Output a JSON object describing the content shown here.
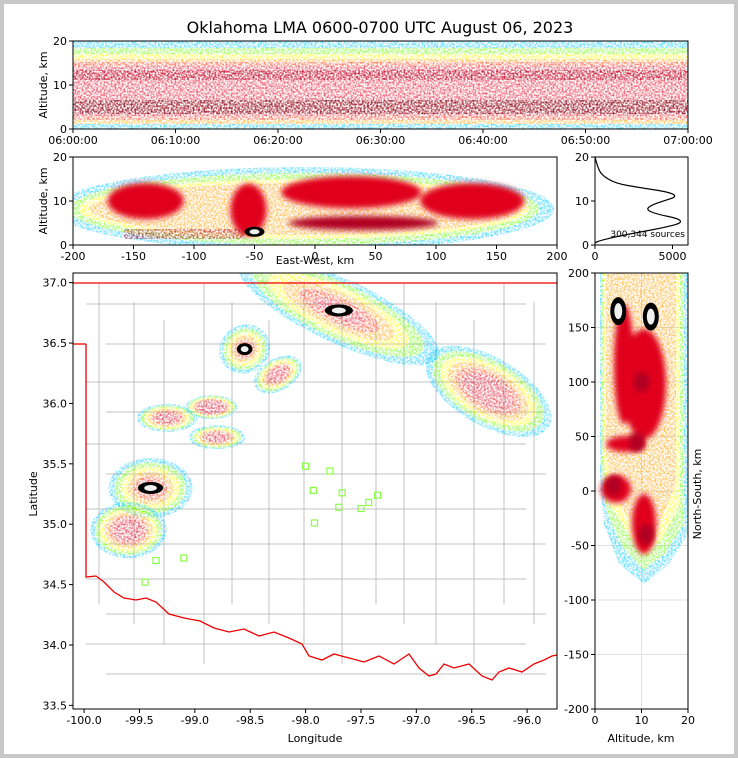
{
  "chart_data": [
    {
      "type": "heatmap",
      "title": "Oklahoma LMA 0600-0700 UTC August 06, 2023",
      "panel": "time-height",
      "xlabel": "",
      "ylabel": "Altitude, km",
      "xticks": [
        "06:00:00",
        "06:10:00",
        "06:20:00",
        "06:30:00",
        "06:40:00",
        "06:50:00",
        "07:00:00"
      ],
      "yticks": [
        0,
        10,
        20
      ],
      "ylim": [
        0,
        20
      ],
      "source_density_band": [
        {
          "altitude_km_range": [
            2,
            15
          ],
          "level": "very high"
        },
        {
          "altitude_km_range": [
            15,
            19
          ],
          "level": "moderate"
        },
        {
          "altitude_km_range": [
            0,
            2
          ],
          "level": "low"
        }
      ]
    },
    {
      "type": "heatmap",
      "panel": "east-west altitude",
      "xlabel": "East-West, km",
      "ylabel": "Altitude, km",
      "xlim": [
        -200,
        200
      ],
      "ylim": [
        0,
        20
      ],
      "xticks": [
        -200,
        -150,
        -100,
        -50,
        0,
        50,
        100,
        150,
        200
      ],
      "yticks": [
        0,
        10,
        20
      ],
      "cores": [
        {
          "x_km": -140,
          "alt_km": 10,
          "level": "high"
        },
        {
          "x_km": -55,
          "alt_km": 8,
          "level": "high"
        },
        {
          "x_km": -50,
          "alt_km": 3,
          "level": "very high"
        },
        {
          "x_km": 30,
          "alt_km": 12,
          "level": "high"
        },
        {
          "x_km": 40,
          "alt_km": 5,
          "level": "high"
        },
        {
          "x_km": 130,
          "alt_km": 10,
          "level": "high"
        }
      ]
    },
    {
      "type": "line",
      "panel": "altitude histogram",
      "annotation": "300,344 sources",
      "xlim": [
        0,
        6000
      ],
      "xticks": [
        0,
        5000
      ],
      "ylim": [
        0,
        20
      ],
      "yticks": [
        0,
        10,
        20
      ],
      "x": [
        0,
        300,
        1500,
        3000,
        4500,
        5600,
        5400,
        4000,
        3300,
        3600,
        4400,
        5300,
        4800,
        3000,
        1300,
        400,
        150,
        0
      ],
      "y": [
        0.5,
        1,
        2,
        3,
        4,
        5,
        6,
        7,
        8,
        9,
        10,
        11,
        12,
        13,
        14,
        16,
        18,
        20
      ]
    },
    {
      "type": "heatmap",
      "panel": "plan view",
      "xlabel": "Longitude",
      "ylabel": "Latitude",
      "xlim": [
        -100.1,
        -95.73
      ],
      "ylim": [
        33.47,
        37.08
      ],
      "xticks": [
        -100.0,
        -99.5,
        -99.0,
        -98.5,
        -98.0,
        -97.5,
        -97.0,
        -96.5,
        -96.0
      ],
      "yticks": [
        33.5,
        34.0,
        34.5,
        35.0,
        35.5,
        36.0,
        36.5,
        37.0
      ],
      "lma_stations": [
        {
          "lon": -99.45,
          "lat": 34.52
        },
        {
          "lon": -99.35,
          "lat": 34.7
        },
        {
          "lon": -99.1,
          "lat": 34.72
        },
        {
          "lon": -98.0,
          "lat": 35.48
        },
        {
          "lon": -97.78,
          "lat": 35.44
        },
        {
          "lon": -97.93,
          "lat": 35.28
        },
        {
          "lon": -97.67,
          "lat": 35.26
        },
        {
          "lon": -97.35,
          "lat": 35.24
        },
        {
          "lon": -97.43,
          "lat": 35.18
        },
        {
          "lon": -97.7,
          "lat": 35.14
        },
        {
          "lon": -97.5,
          "lat": 35.13
        },
        {
          "lon": -97.92,
          "lat": 35.01
        }
      ],
      "storm_cells": [
        {
          "lon": -99.4,
          "lat": 35.3,
          "level": "very high"
        },
        {
          "lon": -99.6,
          "lat": 34.95,
          "level": "high"
        },
        {
          "lon": -99.25,
          "lat": 35.88,
          "level": "high"
        },
        {
          "lon": -98.85,
          "lat": 35.97,
          "level": "moderate"
        },
        {
          "lon": -98.8,
          "lat": 35.72,
          "level": "high"
        },
        {
          "lon": -98.55,
          "lat": 36.45,
          "level": "very high"
        },
        {
          "lon": -98.25,
          "lat": 36.24,
          "level": "high"
        },
        {
          "lon": -97.7,
          "lat": 36.77,
          "level": "very high"
        },
        {
          "lon": -96.35,
          "lat": 36.1,
          "level": "high"
        }
      ]
    },
    {
      "type": "heatmap",
      "panel": "north-south altitude",
      "xlabel": "Altitude, km",
      "ylabel": "North-South, km",
      "xlim": [
        0,
        20
      ],
      "ylim": [
        -200,
        200
      ],
      "xticks": [
        0,
        10,
        20
      ],
      "yticks": [
        -200,
        -150,
        -100,
        -50,
        0,
        50,
        100,
        150,
        200
      ],
      "cores": [
        {
          "y_km": 165,
          "alt_km": 5,
          "level": "very high"
        },
        {
          "y_km": 160,
          "alt_km": 12,
          "level": "very high"
        },
        {
          "y_km": 100,
          "alt_km": 10,
          "level": "high"
        },
        {
          "y_km": 45,
          "alt_km": 9,
          "level": "high"
        },
        {
          "y_km": 5,
          "alt_km": 4,
          "level": "high"
        },
        {
          "y_km": -40,
          "alt_km": 11,
          "level": "high"
        }
      ]
    }
  ],
  "colors": {
    "palette": [
      "#1a00c8",
      "#8800ff",
      "#00c8ff",
      "#00ff66",
      "#66ff00",
      "#ffff00",
      "#ffa000",
      "#ff2a00",
      "#e0001e",
      "#b00024"
    ],
    "core_white": "#f0f0f0",
    "core_black": "#000000",
    "state_border": "#ee0000",
    "county_line": "#c0c0c0",
    "station": "#88ff44"
  }
}
